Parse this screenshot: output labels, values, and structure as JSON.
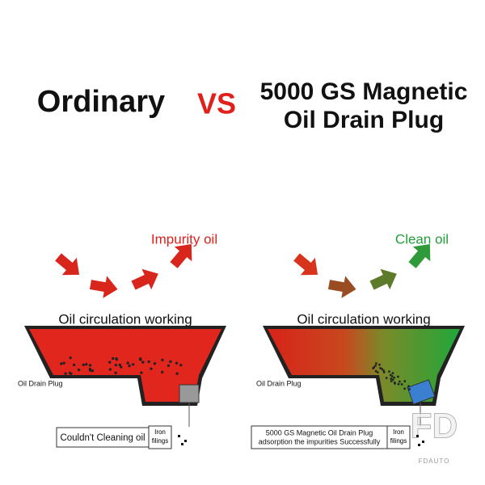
{
  "header": {
    "left": "Ordinary",
    "vs": "VS",
    "right": [
      "5000 GS Magnetic",
      "Oil Drain Plug"
    ]
  },
  "panels": [
    {
      "result": "Impurity oil",
      "label": "Oil circulation working",
      "plug": "Oil Drain Plug",
      "note": [
        "Couldn't Cleaning oil"
      ],
      "filings": [
        "Iron",
        "filings"
      ]
    },
    {
      "result": "Clean oil",
      "label": "Oil circulation working",
      "plug": "Oil Drain Plug",
      "note": [
        "5000 GS Magnetic Oil Drain Plug",
        "adsorption the impurities Successfully"
      ],
      "filings": [
        "Iron",
        "filings"
      ]
    }
  ],
  "watermark": {
    "logo": "FD",
    "brand": "FDAUTO"
  }
}
